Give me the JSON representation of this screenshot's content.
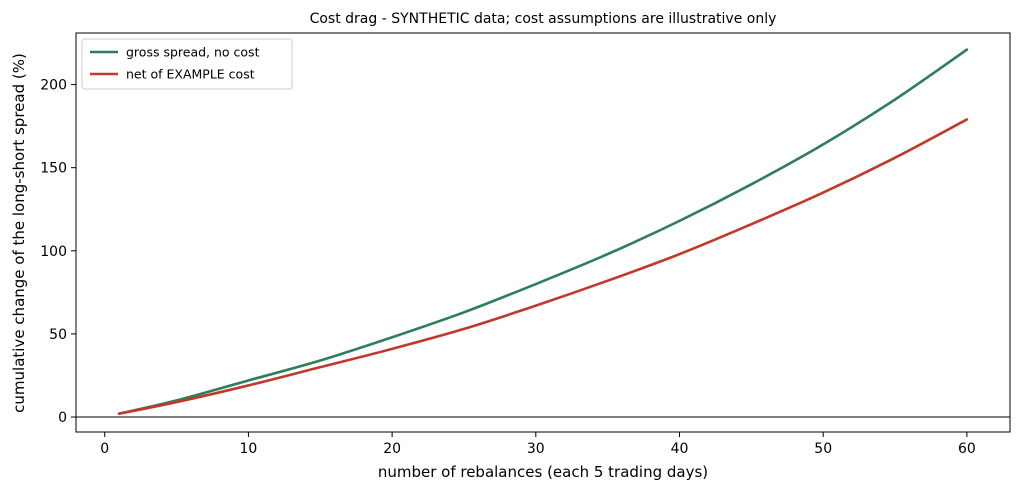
{
  "chart_data": {
    "type": "line",
    "title": "Cost drag - SYNTHETIC data; cost assumptions are illustrative only",
    "xlabel": "number of rebalances (each 5 trading days)",
    "ylabel": "cumulative change of the long-short spread (%)",
    "xlim": [
      -2,
      63
    ],
    "ylim": [
      -9,
      231
    ],
    "xticks": [
      0,
      10,
      20,
      30,
      40,
      50,
      60
    ],
    "yticks": [
      0,
      50,
      100,
      150,
      200
    ],
    "grid": false,
    "zero_line": true,
    "legend_position": "top-left",
    "x": [
      1,
      5,
      10,
      15,
      20,
      25,
      30,
      35,
      40,
      45,
      50,
      55,
      60
    ],
    "series": [
      {
        "name": "gross spread, no cost",
        "color": "#2e7d5b",
        "values": [
          2,
          10,
          22,
          34,
          48,
          63,
          80,
          98,
          118,
          140,
          164,
          191,
          221
        ]
      },
      {
        "name": "net of EXAMPLE cost",
        "color": "#c0392b",
        "values": [
          2,
          9,
          19,
          30,
          41,
          53,
          67,
          82,
          98,
          116,
          135,
          156,
          179
        ]
      }
    ]
  }
}
